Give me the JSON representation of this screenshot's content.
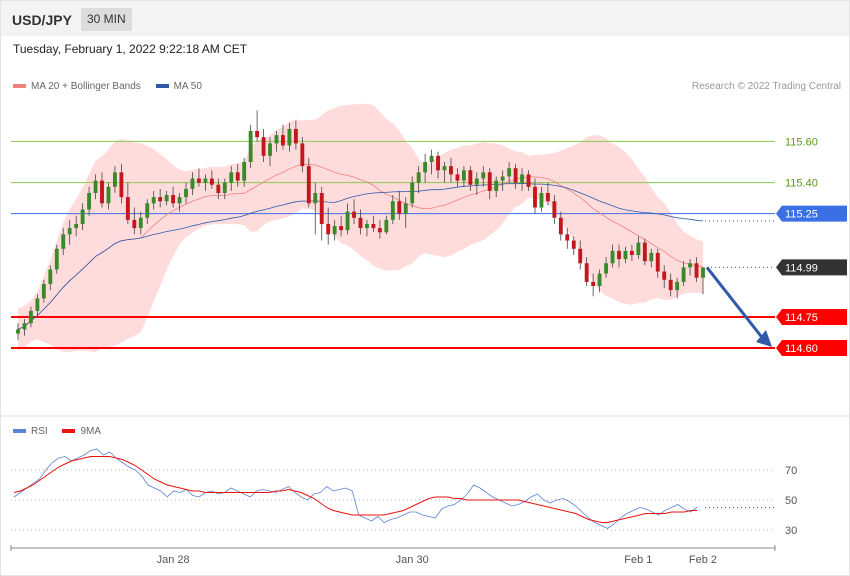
{
  "header": {
    "pair": "USD/JPY",
    "interval": "30 MIN"
  },
  "datetime": "Tuesday, February 1, 2022 9:22:18 AM CET",
  "legend": {
    "ma20_label": "MA 20 + Bollinger Bands",
    "ma50_label": "MA 50",
    "rsi_label": "RSI",
    "rsi_ma_label": "9MA"
  },
  "copyright": "Research © 2022 Trading Central",
  "colors": {
    "up": "#3a8a2a",
    "down": "#c4161c",
    "band": "#ffd6d6",
    "ma20": "#f08080",
    "ma50": "#2e5aa8",
    "resistance": "#8cc84b",
    "pivot": "#3b6fe6",
    "support": "#ff0000",
    "current": "#333333",
    "rsi": "#5b84d6",
    "rsi_ma": "#e8150f"
  },
  "chart_data": [
    {
      "type": "candlestick",
      "ylim": [
        114.3,
        115.8
      ],
      "x_ticks": [
        "Jan 28",
        "Jan 30",
        "Feb 1",
        "Feb 2"
      ],
      "levels": [
        {
          "value": 115.6,
          "label": "115.60",
          "kind": "resistance"
        },
        {
          "value": 115.4,
          "label": "115.40",
          "kind": "resistance"
        },
        {
          "value": 115.25,
          "label": "115.25",
          "kind": "pivot"
        },
        {
          "value": 114.99,
          "label": "114.99",
          "kind": "current"
        },
        {
          "value": 114.75,
          "label": "114.75",
          "kind": "support"
        },
        {
          "value": 114.6,
          "label": "114.60",
          "kind": "support"
        }
      ],
      "ohlc": [
        [
          114.67,
          114.72,
          114.64,
          114.69
        ],
        [
          114.69,
          114.74,
          114.66,
          114.72
        ],
        [
          114.72,
          114.8,
          114.7,
          114.78
        ],
        [
          114.78,
          114.86,
          114.75,
          114.84
        ],
        [
          114.84,
          114.93,
          114.82,
          114.91
        ],
        [
          114.91,
          115.0,
          114.88,
          114.98
        ],
        [
          114.98,
          115.1,
          114.96,
          115.08
        ],
        [
          115.08,
          115.18,
          115.05,
          115.15
        ],
        [
          115.15,
          115.22,
          115.1,
          115.18
        ],
        [
          115.18,
          115.24,
          115.14,
          115.2
        ],
        [
          115.2,
          115.3,
          115.17,
          115.27
        ],
        [
          115.27,
          115.38,
          115.24,
          115.35
        ],
        [
          115.35,
          115.44,
          115.32,
          115.41
        ],
        [
          115.41,
          115.45,
          115.28,
          115.3
        ],
        [
          115.3,
          115.4,
          115.27,
          115.38
        ],
        [
          115.38,
          115.48,
          115.35,
          115.45
        ],
        [
          115.45,
          115.49,
          115.3,
          115.33
        ],
        [
          115.33,
          115.4,
          115.2,
          115.22
        ],
        [
          115.22,
          115.28,
          115.15,
          115.18
        ],
        [
          115.18,
          115.26,
          115.15,
          115.23
        ],
        [
          115.23,
          115.32,
          115.2,
          115.3
        ],
        [
          115.3,
          115.36,
          115.27,
          115.33
        ],
        [
          115.33,
          115.37,
          115.28,
          115.31
        ],
        [
          115.31,
          115.36,
          115.29,
          115.34
        ],
        [
          115.34,
          115.38,
          115.28,
          115.3
        ],
        [
          115.3,
          115.35,
          115.26,
          115.33
        ],
        [
          115.33,
          115.4,
          115.3,
          115.37
        ],
        [
          115.37,
          115.45,
          115.34,
          115.42
        ],
        [
          115.42,
          115.47,
          115.38,
          115.4
        ],
        [
          115.4,
          115.44,
          115.36,
          115.42
        ],
        [
          115.42,
          115.46,
          115.37,
          115.39
        ],
        [
          115.39,
          115.42,
          115.32,
          115.35
        ],
        [
          115.35,
          115.42,
          115.32,
          115.4
        ],
        [
          115.4,
          115.48,
          115.36,
          115.45
        ],
        [
          115.45,
          115.49,
          115.38,
          115.41
        ],
        [
          115.41,
          115.52,
          115.38,
          115.5
        ],
        [
          115.5,
          115.68,
          115.47,
          115.65
        ],
        [
          115.65,
          115.75,
          115.6,
          115.62
        ],
        [
          115.62,
          115.66,
          115.5,
          115.53
        ],
        [
          115.53,
          115.62,
          115.48,
          115.59
        ],
        [
          115.59,
          115.65,
          115.55,
          115.63
        ],
        [
          115.63,
          115.68,
          115.56,
          115.58
        ],
        [
          115.58,
          115.69,
          115.55,
          115.66
        ],
        [
          115.66,
          115.7,
          115.56,
          115.59
        ],
        [
          115.59,
          115.62,
          115.45,
          115.48
        ],
        [
          115.48,
          115.52,
          115.28,
          115.3
        ],
        [
          115.3,
          115.4,
          115.15,
          115.35
        ],
        [
          115.35,
          115.38,
          115.12,
          115.2
        ],
        [
          115.2,
          115.28,
          115.1,
          115.15
        ],
        [
          115.15,
          115.22,
          115.12,
          115.19
        ],
        [
          115.19,
          115.24,
          115.14,
          115.17
        ],
        [
          115.17,
          115.3,
          115.15,
          115.26
        ],
        [
          115.26,
          115.32,
          115.2,
          115.23
        ],
        [
          115.23,
          115.27,
          115.15,
          115.18
        ],
        [
          115.18,
          115.22,
          115.14,
          115.2
        ],
        [
          115.2,
          115.24,
          115.16,
          115.18
        ],
        [
          115.18,
          115.22,
          115.13,
          115.16
        ],
        [
          115.16,
          115.24,
          115.15,
          115.22
        ],
        [
          115.22,
          115.34,
          115.2,
          115.31
        ],
        [
          115.31,
          115.36,
          115.22,
          115.25
        ],
        [
          115.25,
          115.33,
          115.18,
          115.3
        ],
        [
          115.3,
          115.43,
          115.28,
          115.4
        ],
        [
          115.4,
          115.48,
          115.35,
          115.45
        ],
        [
          115.45,
          115.54,
          115.4,
          115.5
        ],
        [
          115.5,
          115.56,
          115.44,
          115.53
        ],
        [
          115.53,
          115.55,
          115.42,
          115.46
        ],
        [
          115.46,
          115.5,
          115.4,
          115.48
        ],
        [
          115.48,
          115.52,
          115.4,
          115.44
        ],
        [
          115.44,
          115.47,
          115.38,
          115.41
        ],
        [
          115.41,
          115.48,
          115.38,
          115.46
        ],
        [
          115.46,
          115.48,
          115.36,
          115.39
        ],
        [
          115.39,
          115.45,
          115.34,
          115.42
        ],
        [
          115.42,
          115.48,
          115.38,
          115.45
        ],
        [
          115.45,
          115.47,
          115.32,
          115.36
        ],
        [
          115.36,
          115.43,
          115.33,
          115.41
        ],
        [
          115.41,
          115.46,
          115.36,
          115.43
        ],
        [
          115.43,
          115.5,
          115.4,
          115.47
        ],
        [
          115.47,
          115.49,
          115.37,
          115.4
        ],
        [
          115.4,
          115.47,
          115.36,
          115.44
        ],
        [
          115.44,
          115.46,
          115.36,
          115.38
        ],
        [
          115.38,
          115.42,
          115.25,
          115.28
        ],
        [
          115.28,
          115.38,
          115.26,
          115.35
        ],
        [
          115.35,
          115.4,
          115.29,
          115.31
        ],
        [
          115.31,
          115.34,
          115.2,
          115.23
        ],
        [
          115.23,
          115.26,
          115.12,
          115.15
        ],
        [
          115.15,
          115.18,
          115.08,
          115.12
        ],
        [
          115.12,
          115.14,
          115.05,
          115.08
        ],
        [
          115.08,
          115.12,
          114.98,
          115.01
        ],
        [
          115.01,
          115.04,
          114.9,
          114.92
        ],
        [
          114.92,
          114.96,
          114.85,
          114.9
        ],
        [
          114.9,
          114.98,
          114.87,
          114.96
        ],
        [
          114.96,
          115.04,
          114.94,
          115.01
        ],
        [
          115.01,
          115.1,
          114.99,
          115.07
        ],
        [
          115.07,
          115.1,
          114.99,
          115.03
        ],
        [
          115.03,
          115.09,
          115.01,
          115.07
        ],
        [
          115.07,
          115.1,
          115.02,
          115.05
        ],
        [
          115.05,
          115.14,
          115.03,
          115.11
        ],
        [
          115.11,
          115.13,
          115.0,
          115.02
        ],
        [
          115.02,
          115.08,
          114.99,
          115.06
        ],
        [
          115.06,
          115.08,
          114.94,
          114.97
        ],
        [
          114.97,
          115.0,
          114.89,
          114.93
        ],
        [
          114.93,
          114.96,
          114.85,
          114.88
        ],
        [
          114.88,
          114.94,
          114.84,
          114.92
        ],
        [
          114.92,
          115.02,
          114.9,
          114.99
        ],
        [
          114.99,
          115.03,
          114.95,
          115.01
        ],
        [
          115.01,
          115.04,
          114.92,
          114.94
        ],
        [
          114.94,
          114.99,
          114.86,
          114.99
        ]
      ]
    },
    {
      "type": "line",
      "name": "RSI",
      "ylim": [
        20,
        90
      ],
      "y_ticks": [
        70,
        50,
        30
      ],
      "series": [
        {
          "name": "RSI",
          "values": [
            52,
            55,
            58,
            61,
            64,
            70,
            75,
            78,
            79,
            76,
            78,
            80,
            83,
            84,
            80,
            82,
            78,
            75,
            72,
            70,
            66,
            60,
            58,
            56,
            52,
            56,
            55,
            57,
            53,
            52,
            55,
            56,
            54,
            55,
            58,
            56,
            54,
            52,
            56,
            57,
            56,
            55,
            57,
            59,
            55,
            52,
            50,
            54,
            55,
            59,
            56,
            57,
            58,
            56,
            40,
            38,
            36,
            39,
            35,
            37,
            38,
            40,
            42,
            42,
            40,
            39,
            38,
            44,
            46,
            47,
            50,
            54,
            60,
            58,
            55,
            52,
            50,
            48,
            46,
            47,
            49,
            52,
            54,
            50,
            48,
            50,
            51,
            49,
            46,
            42,
            38,
            35,
            33,
            31,
            34,
            38,
            41,
            43,
            45,
            44,
            42,
            40,
            43,
            45,
            47,
            44,
            42,
            45
          ]
        },
        {
          "name": "9MA",
          "values": [
            55,
            56,
            58,
            60,
            63,
            66,
            69,
            72,
            74,
            76,
            77,
            78,
            79,
            79,
            79,
            79,
            78,
            77,
            75,
            73,
            70,
            67,
            64,
            62,
            60,
            59,
            58,
            57,
            56,
            56,
            55,
            55,
            55,
            55,
            55,
            55,
            55,
            55,
            55,
            55,
            55,
            56,
            56,
            57,
            56,
            55,
            53,
            51,
            48,
            45,
            43,
            42,
            41,
            40,
            40,
            40,
            40,
            40,
            40,
            41,
            42,
            43,
            45,
            47,
            49,
            51,
            52,
            52,
            52,
            51,
            51,
            50,
            50,
            50,
            50,
            50,
            50,
            50,
            50,
            50,
            49,
            48,
            47,
            46,
            45,
            44,
            43,
            42,
            41,
            39,
            37,
            36,
            35,
            35,
            36,
            37,
            38,
            39,
            40,
            41,
            41,
            41,
            41,
            42,
            42,
            42,
            43,
            43
          ]
        }
      ]
    }
  ]
}
